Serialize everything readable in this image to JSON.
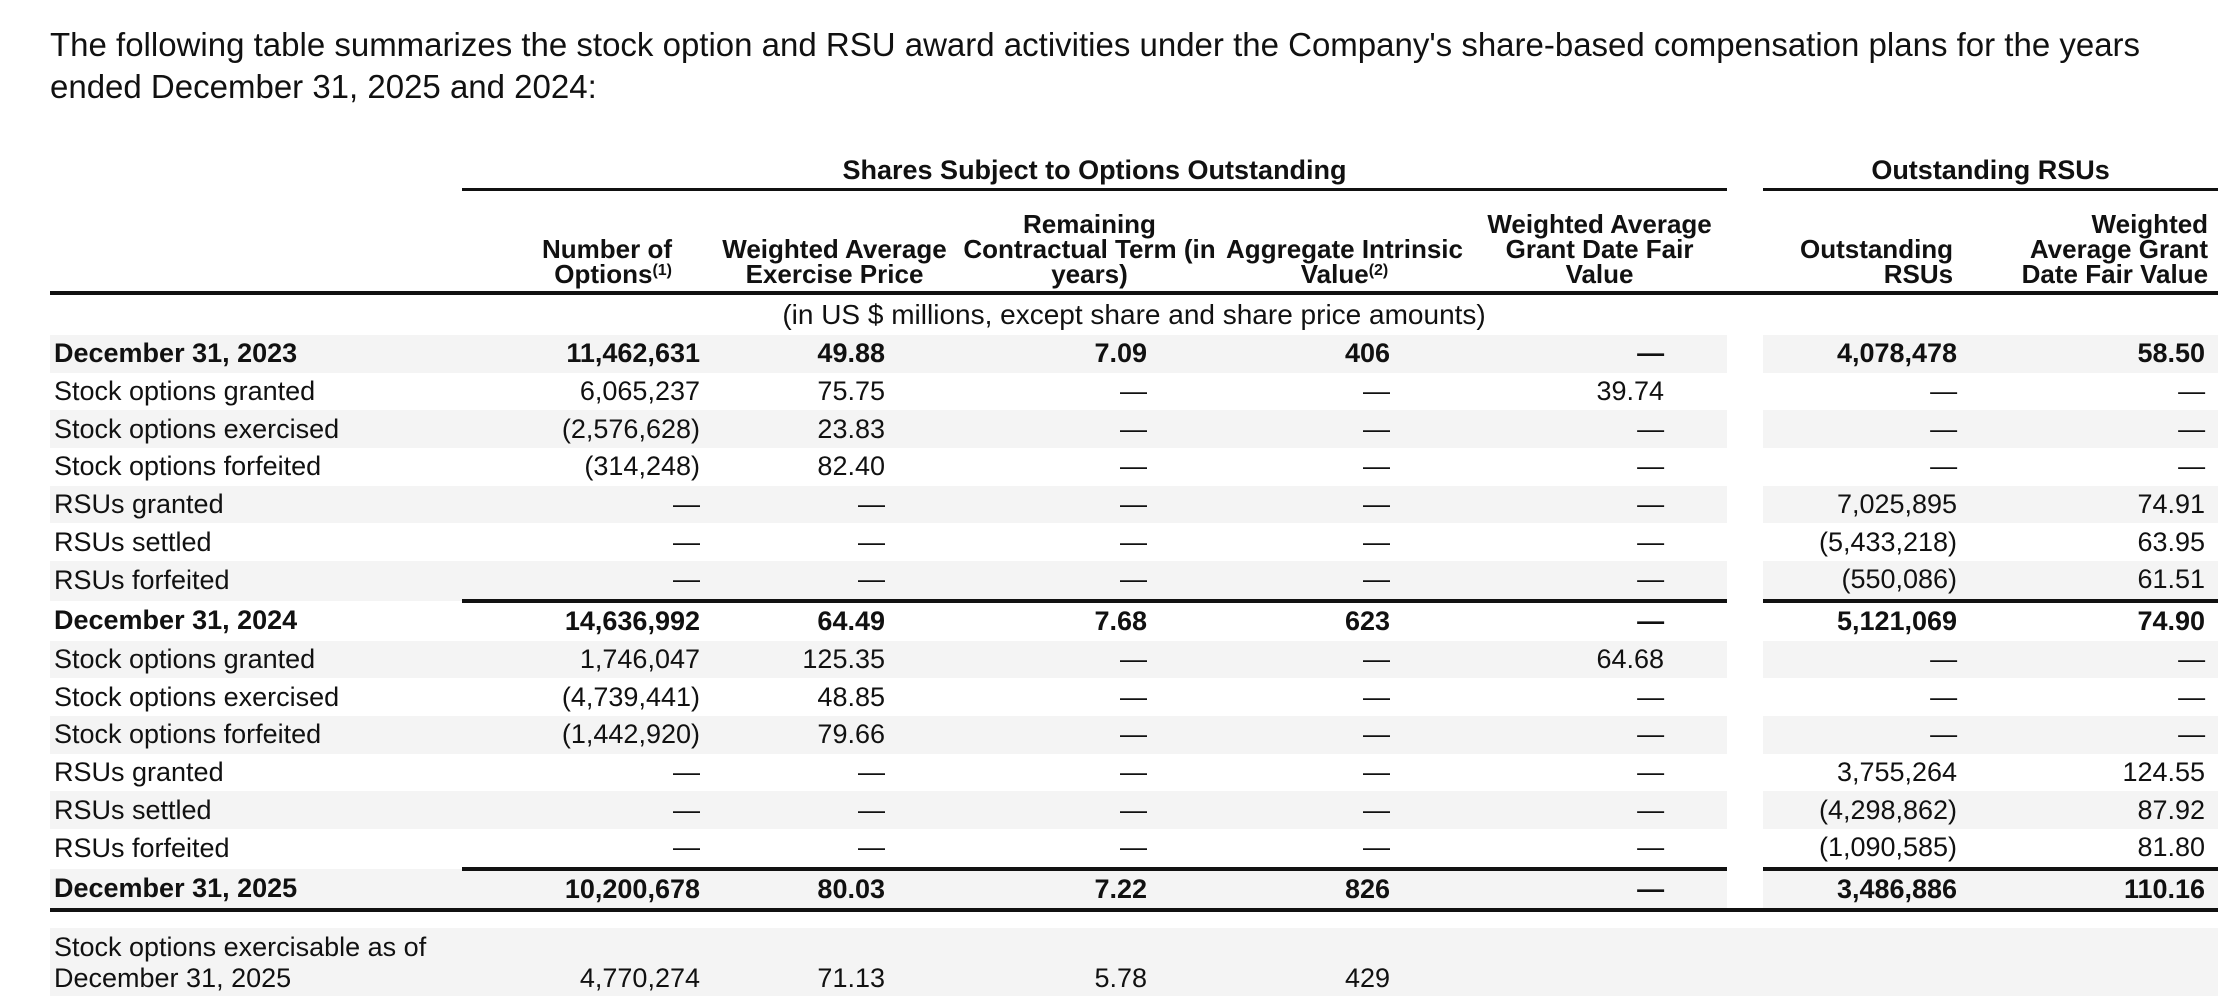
{
  "intro": "The following table summarizes the stock option and RSU award activities under the Company's share-based compensation plans for the years ended December 31, 2025 and 2024:",
  "groups": {
    "options": "Shares Subject to Options Outstanding",
    "rsus": "Outstanding RSUs"
  },
  "headers": {
    "num_options": "Number of Options",
    "num_options_note": "(1)",
    "wa_exercise_price": "Weighted Average Exercise Price",
    "remaining_term": "Remaining Contractual Term (in years)",
    "aggregate_value": "Aggregate Intrinsic Value",
    "aggregate_value_note": "(2)",
    "wa_grant_fv": "Weighted Average Grant Date Fair Value",
    "outstanding_rsus": "Outstanding RSUs",
    "rsu_wa_grant_fv": "Weighted Average Grant Date Fair Value"
  },
  "units": "(in US $ millions, except share and share price amounts)",
  "rows": [
    {
      "label": "December 31, 2023",
      "c1": "11,462,631",
      "c2": "49.88",
      "c3": "7.09",
      "c4": "406",
      "c5": "—",
      "c6": "4,078,478",
      "c7": "58.50"
    },
    {
      "label": "Stock options granted",
      "c1": "6,065,237",
      "c2": "75.75",
      "c3": "—",
      "c4": "—",
      "c5": "39.74",
      "c6": "—",
      "c7": "—"
    },
    {
      "label": "Stock options exercised",
      "c1": "(2,576,628)",
      "c2": "23.83",
      "c3": "—",
      "c4": "—",
      "c5": "—",
      "c6": "—",
      "c7": "—"
    },
    {
      "label": "Stock options forfeited",
      "c1": "(314,248)",
      "c2": "82.40",
      "c3": "—",
      "c4": "—",
      "c5": "—",
      "c6": "—",
      "c7": "—"
    },
    {
      "label": "RSUs granted",
      "c1": "—",
      "c2": "—",
      "c3": "—",
      "c4": "—",
      "c5": "—",
      "c6": "7,025,895",
      "c7": "74.91"
    },
    {
      "label": "RSUs settled",
      "c1": "—",
      "c2": "—",
      "c3": "—",
      "c4": "—",
      "c5": "—",
      "c6": "(5,433,218)",
      "c7": "63.95"
    },
    {
      "label": "RSUs forfeited",
      "c1": "—",
      "c2": "—",
      "c3": "—",
      "c4": "—",
      "c5": "—",
      "c6": "(550,086)",
      "c7": "61.51"
    },
    {
      "label": "December 31, 2024",
      "c1": "14,636,992",
      "c2": "64.49",
      "c3": "7.68",
      "c4": "623",
      "c5": "—",
      "c6": "5,121,069",
      "c7": "74.90"
    },
    {
      "label": "Stock options granted",
      "c1": "1,746,047",
      "c2": "125.35",
      "c3": "—",
      "c4": "—",
      "c5": "64.68",
      "c6": "—",
      "c7": "—"
    },
    {
      "label": "Stock options exercised",
      "c1": "(4,739,441)",
      "c2": "48.85",
      "c3": "—",
      "c4": "—",
      "c5": "—",
      "c6": "—",
      "c7": "—"
    },
    {
      "label": "Stock options forfeited",
      "c1": "(1,442,920)",
      "c2": "79.66",
      "c3": "—",
      "c4": "—",
      "c5": "—",
      "c6": "—",
      "c7": "—"
    },
    {
      "label": "RSUs granted",
      "c1": "—",
      "c2": "—",
      "c3": "—",
      "c4": "—",
      "c5": "—",
      "c6": "3,755,264",
      "c7": "124.55"
    },
    {
      "label": "RSUs settled",
      "c1": "—",
      "c2": "—",
      "c3": "—",
      "c4": "—",
      "c5": "—",
      "c6": "(4,298,862)",
      "c7": "87.92"
    },
    {
      "label": "RSUs forfeited",
      "c1": "—",
      "c2": "—",
      "c3": "—",
      "c4": "—",
      "c5": "—",
      "c6": "(1,090,585)",
      "c7": "81.80"
    },
    {
      "label": "December 31, 2025",
      "c1": "10,200,678",
      "c2": "80.03",
      "c3": "7.22",
      "c4": "826",
      "c5": "—",
      "c6": "3,486,886",
      "c7": "110.16"
    }
  ],
  "exercisable": {
    "label": "Stock options exercisable as of December 31, 2025",
    "c1": "4,770,274",
    "c2": "71.13",
    "c3": "5.78",
    "c4": "429"
  }
}
